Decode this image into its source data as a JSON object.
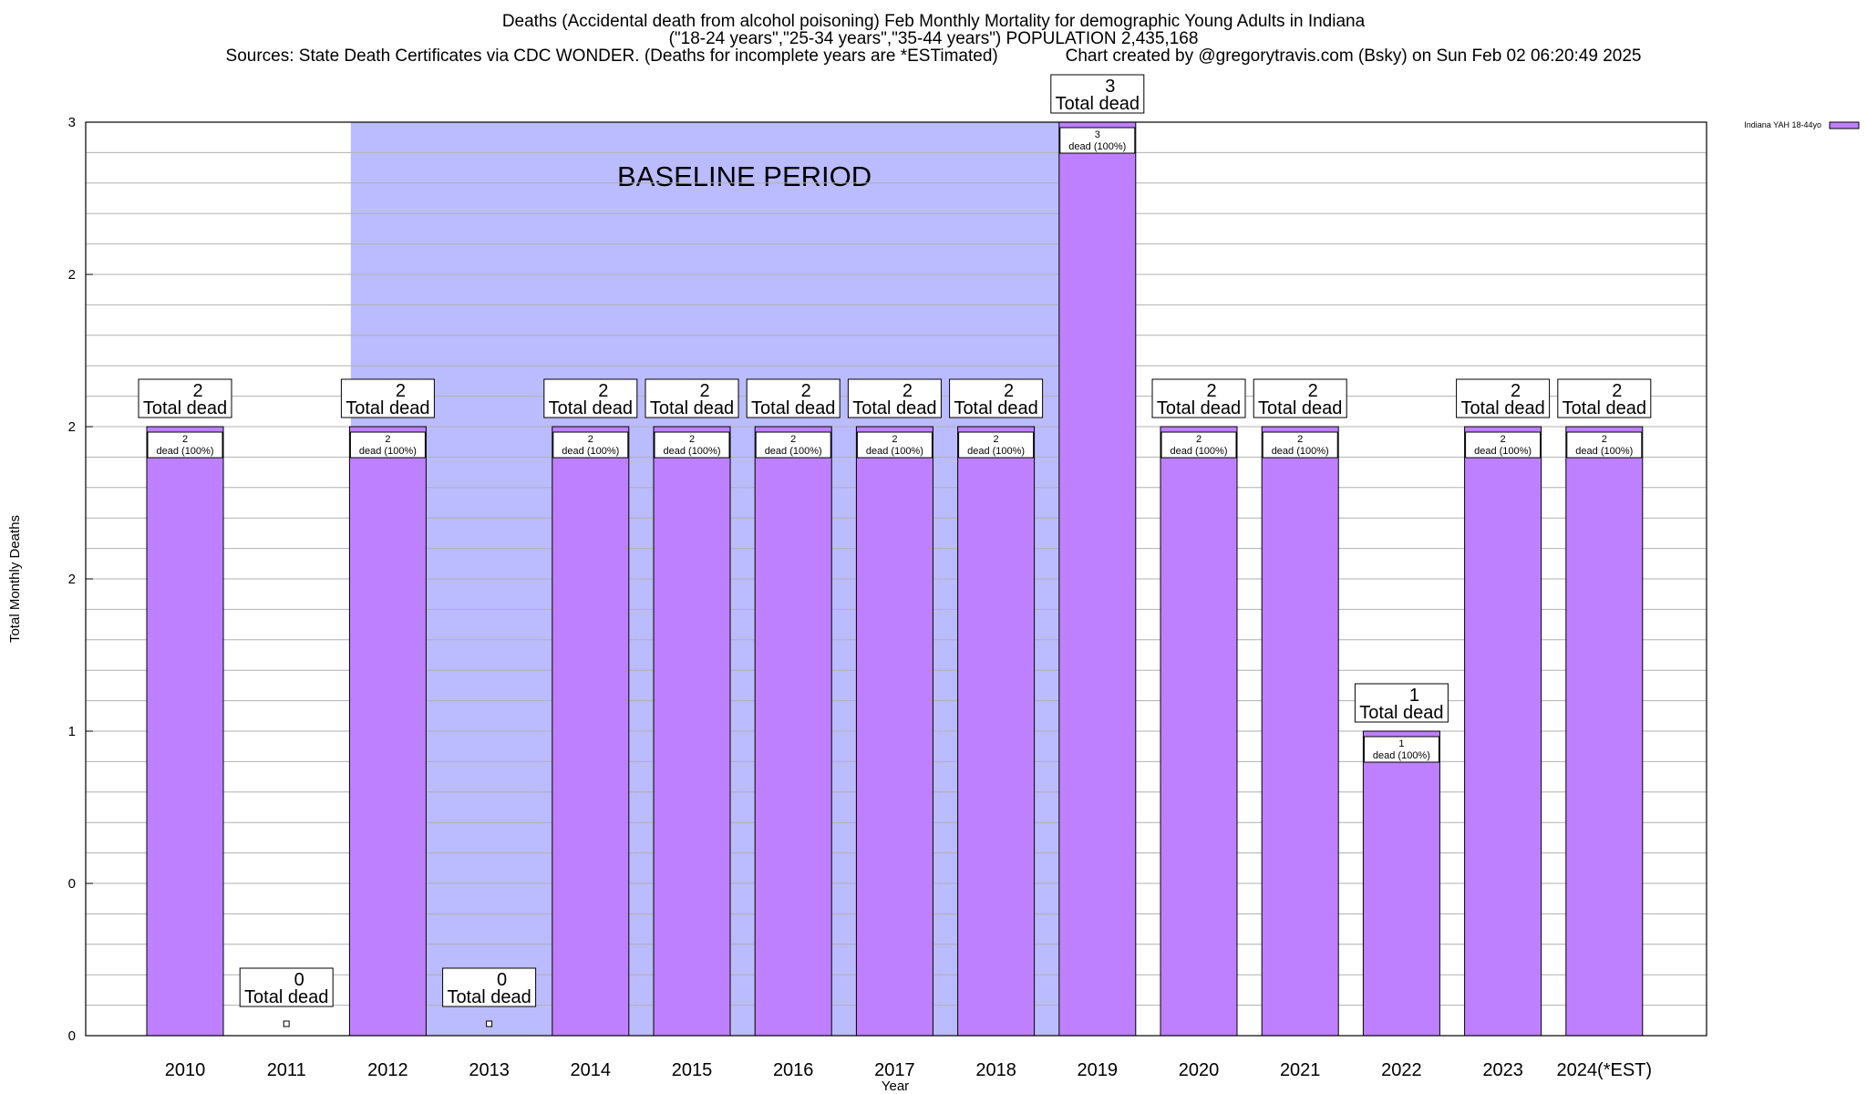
{
  "chart_data": {
    "type": "bar",
    "title_lines": [
      "Deaths (Accidental death from alcohol poisoning) Feb Monthly Mortality for demographic Young Adults in Indiana",
      "(\"18-24 years\",\"25-34 years\",\"35-44 years\") POPULATION 2,435,168",
      "Sources: State Death Certificates via CDC WONDER. (Deaths for incomplete years are *ESTimated)              Chart created by @gregorytravis.com (Bsky) on Sun Feb 02 06:20:49 2025"
    ],
    "xlabel": "Year",
    "ylabel": "Total Monthly Deaths",
    "ylim": [
      0,
      3
    ],
    "y_ticks": [
      {
        "value": 0,
        "label": "0"
      },
      {
        "value": 0.5,
        "label": "0"
      },
      {
        "value": 1,
        "label": "1"
      },
      {
        "value": 1.5,
        "label": "2"
      },
      {
        "value": 2,
        "label": "2"
      },
      {
        "value": 2.5,
        "label": "2"
      },
      {
        "value": 3,
        "label": "3"
      }
    ],
    "categories": [
      "2010",
      "2011",
      "2012",
      "2013",
      "2014",
      "2015",
      "2016",
      "2017",
      "2018",
      "2019",
      "2020",
      "2021",
      "2022",
      "2023",
      "2024(*EST)"
    ],
    "series": [
      {
        "name": "Indiana YAH 18-44yo",
        "color": "#bf80ff",
        "values": [
          2,
          0,
          2,
          0,
          2,
          2,
          2,
          2,
          2,
          3,
          2,
          2,
          1,
          2,
          2
        ]
      }
    ],
    "total_labels": [
      "2",
      "0",
      "2",
      "0",
      "2",
      "2",
      "2",
      "2",
      "2",
      "3",
      "2",
      "2",
      "1",
      "2",
      "2"
    ],
    "total_suffix": "Total dead",
    "inner_suffix": "dead (100%)",
    "baseline": {
      "label": "BASELINE PERIOD",
      "start_index": 2,
      "end_index": 9,
      "color": "#bbbbff"
    },
    "legend": {
      "label": "Indiana YAH 18-44yo",
      "position": "top-right"
    },
    "grid": true
  }
}
